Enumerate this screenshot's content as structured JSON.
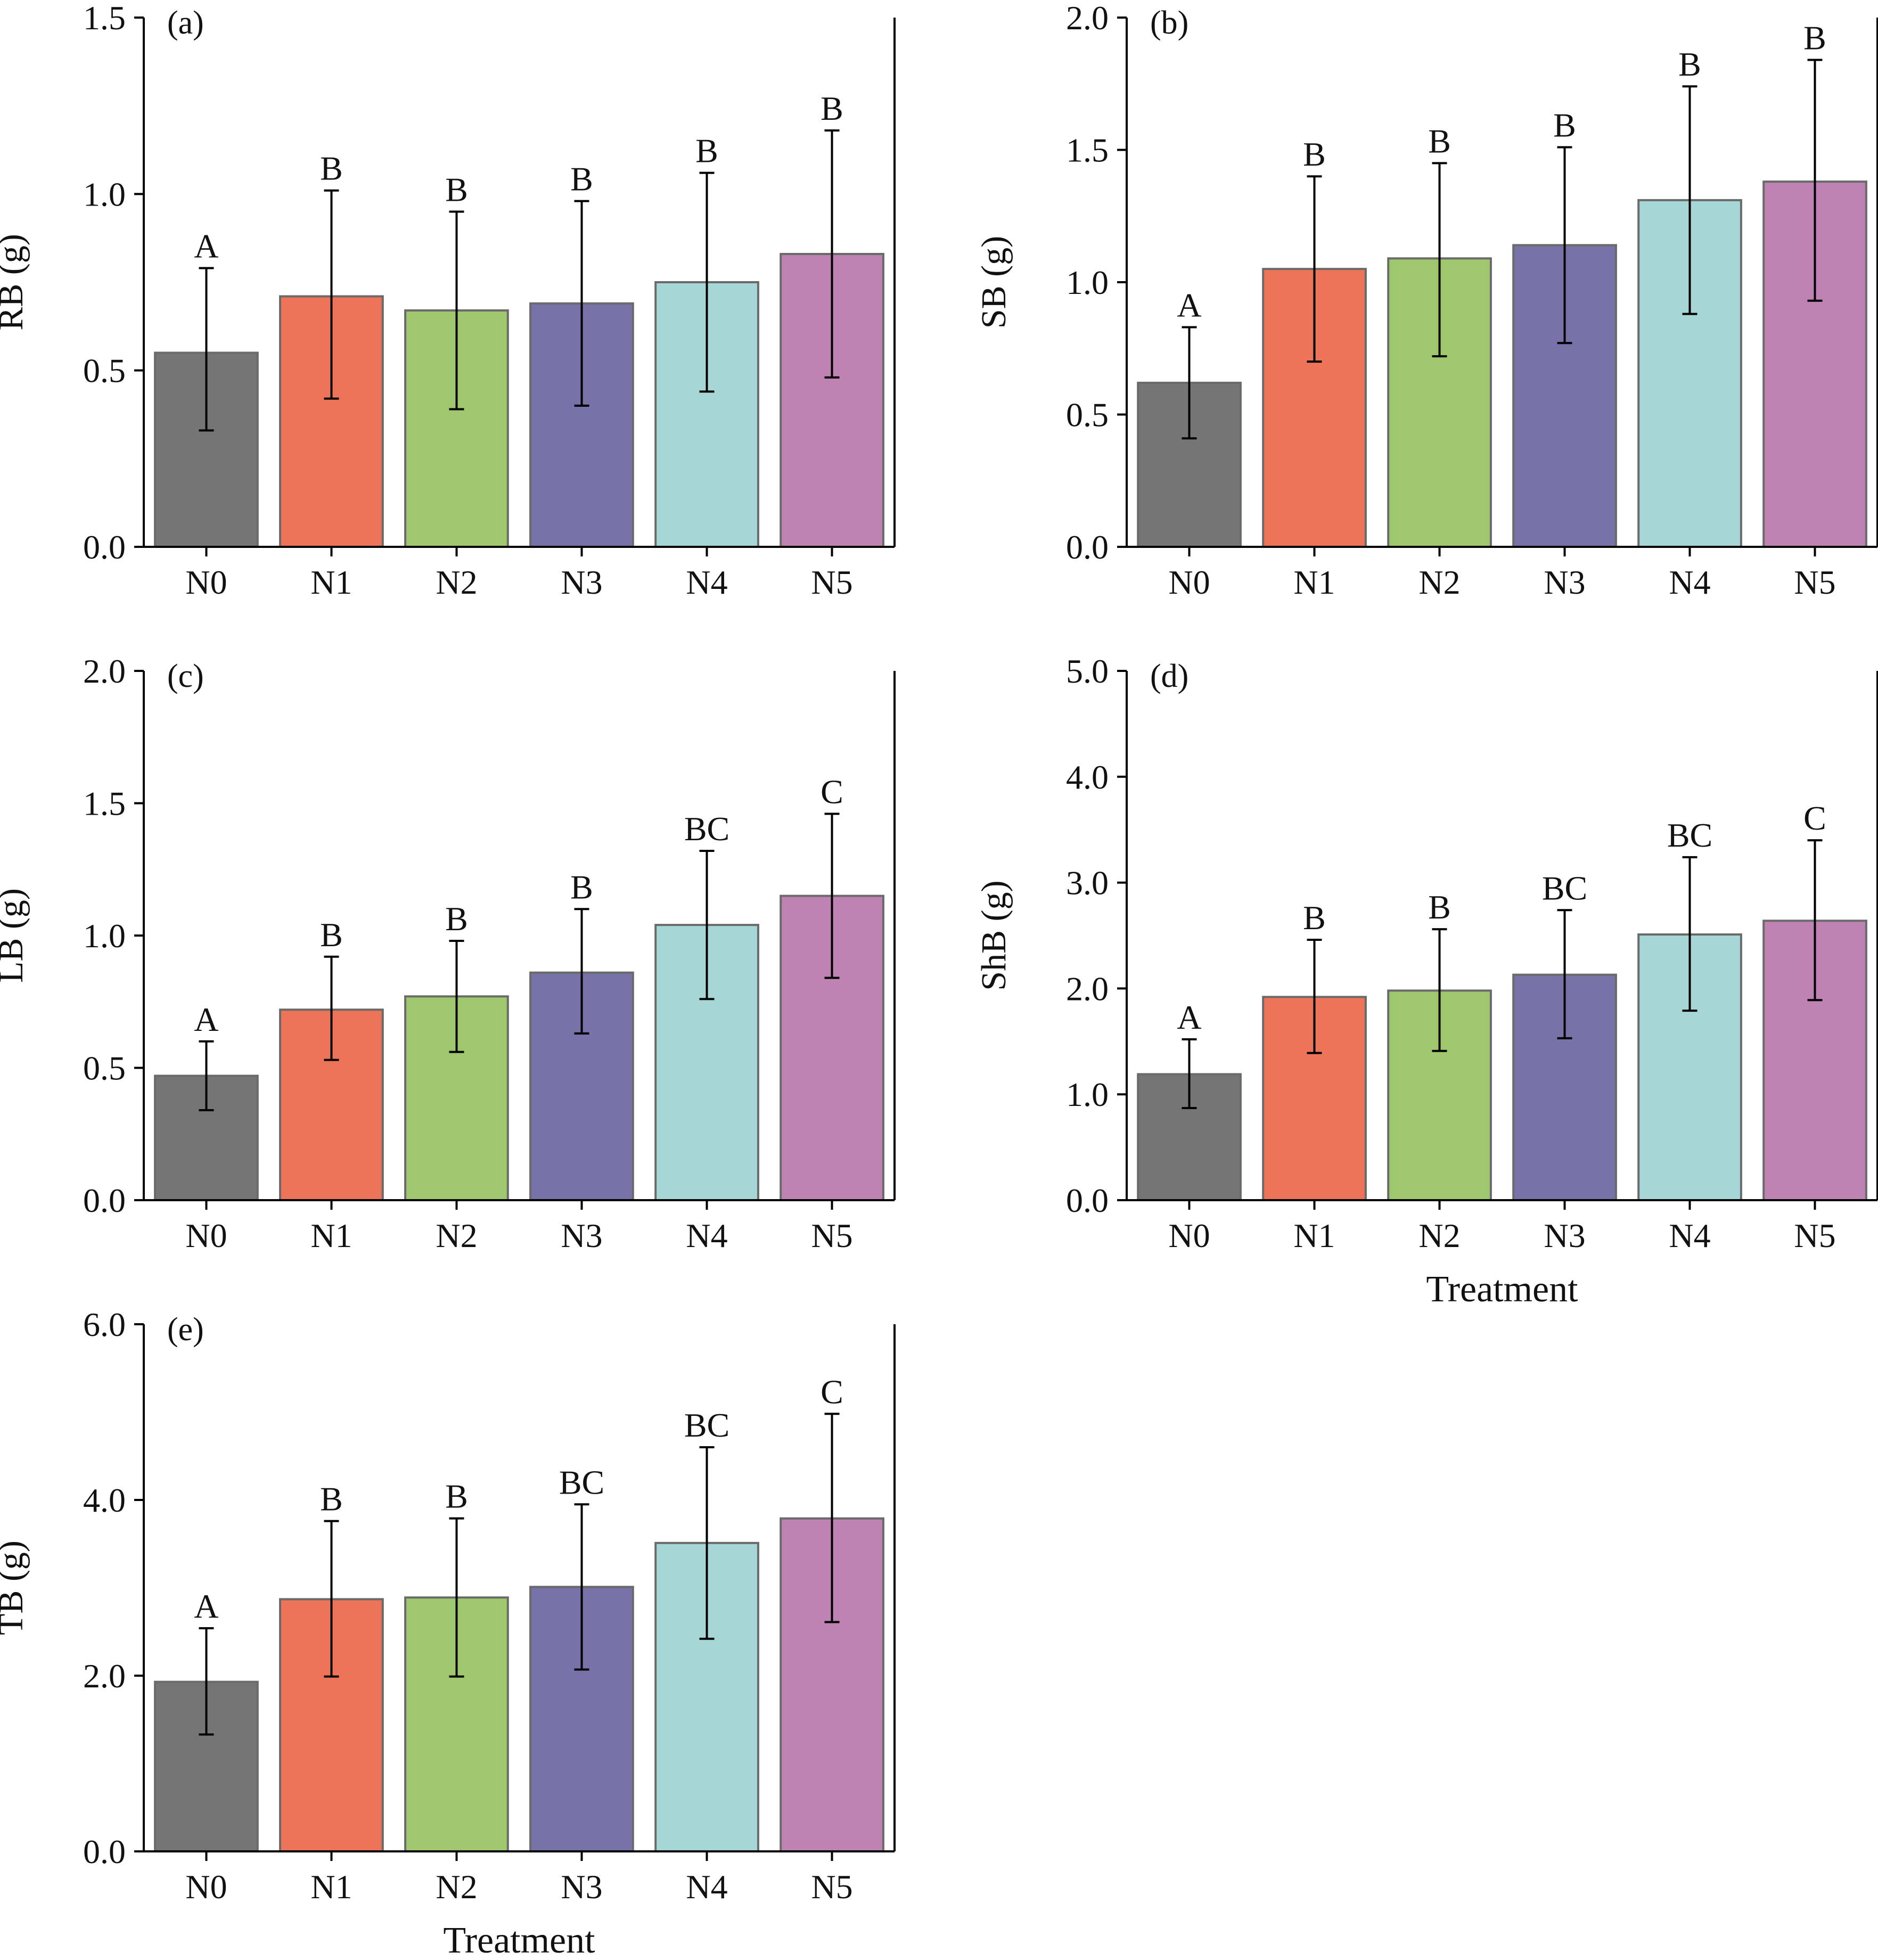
{
  "figure": {
    "x_axis_title": "Treatment"
  },
  "colors": {
    "N0": "#757575",
    "N1": "#ed7458",
    "N2": "#9fc86e",
    "N3": "#7772a8",
    "N4": "#a6d6d5",
    "N5": "#bf83b3",
    "bar_edge": "#6a6a6a",
    "axis": "#000000"
  },
  "chart_data": [
    {
      "type": "bar",
      "panel": "(a)",
      "ylabel": "RB (g)",
      "xlabel": "",
      "categories": [
        "N0",
        "N1",
        "N2",
        "N3",
        "N4",
        "N5"
      ],
      "values": [
        0.55,
        0.71,
        0.67,
        0.69,
        0.75,
        0.83
      ],
      "error_upper": [
        0.79,
        1.01,
        0.95,
        0.98,
        1.06,
        1.18
      ],
      "error_lower": [
        0.33,
        0.42,
        0.39,
        0.4,
        0.44,
        0.48
      ],
      "significance": [
        "A",
        "B",
        "B",
        "B",
        "B",
        "B"
      ],
      "ylim": [
        0,
        1.5
      ],
      "yticks": [
        "0.0",
        "0.5",
        "1.0",
        "1.5"
      ]
    },
    {
      "type": "bar",
      "panel": "(b)",
      "ylabel": "SB (g)",
      "xlabel": "",
      "categories": [
        "N0",
        "N1",
        "N2",
        "N3",
        "N4",
        "N5"
      ],
      "values": [
        0.62,
        1.05,
        1.09,
        1.14,
        1.31,
        1.38
      ],
      "error_upper": [
        0.83,
        1.4,
        1.45,
        1.51,
        1.74,
        1.84
      ],
      "error_lower": [
        0.41,
        0.7,
        0.72,
        0.77,
        0.88,
        0.93
      ],
      "significance": [
        "A",
        "B",
        "B",
        "B",
        "B",
        "B"
      ],
      "ylim": [
        0,
        2.0
      ],
      "yticks": [
        "0.0",
        "0.5",
        "1.0",
        "1.5",
        "2.0"
      ]
    },
    {
      "type": "bar",
      "panel": "(c)",
      "ylabel": "LB (g)",
      "xlabel": "",
      "categories": [
        "N0",
        "N1",
        "N2",
        "N3",
        "N4",
        "N5"
      ],
      "values": [
        0.47,
        0.72,
        0.77,
        0.86,
        1.04,
        1.15
      ],
      "error_upper": [
        0.6,
        0.92,
        0.98,
        1.1,
        1.32,
        1.46
      ],
      "error_lower": [
        0.34,
        0.53,
        0.56,
        0.63,
        0.76,
        0.84
      ],
      "significance": [
        "A",
        "B",
        "B",
        "B",
        "BC",
        "C"
      ],
      "ylim": [
        0,
        2.0
      ],
      "yticks": [
        "0.0",
        "0.5",
        "1.0",
        "1.5",
        "2.0"
      ]
    },
    {
      "type": "bar",
      "panel": "(d)",
      "ylabel": "ShB (g)",
      "xlabel": "Treatment",
      "categories": [
        "N0",
        "N1",
        "N2",
        "N3",
        "N4",
        "N5"
      ],
      "values": [
        1.19,
        1.92,
        1.98,
        2.13,
        2.51,
        2.64
      ],
      "error_upper": [
        1.52,
        2.46,
        2.56,
        2.74,
        3.24,
        3.4
      ],
      "error_lower": [
        0.87,
        1.39,
        1.41,
        1.53,
        1.79,
        1.89
      ],
      "significance": [
        "A",
        "B",
        "B",
        "BC",
        "BC",
        "C"
      ],
      "ylim": [
        0,
        5.0
      ],
      "yticks": [
        "0.0",
        "1.0",
        "2.0",
        "3.0",
        "4.0",
        "5.0"
      ]
    },
    {
      "type": "bar",
      "panel": "(e)",
      "ylabel": "TB (g)",
      "xlabel": "Treatment",
      "categories": [
        "N0",
        "N1",
        "N2",
        "N3",
        "N4",
        "N5"
      ],
      "values": [
        1.93,
        2.87,
        2.89,
        3.01,
        3.51,
        3.79
      ],
      "error_upper": [
        2.54,
        3.76,
        3.79,
        3.95,
        4.6,
        4.98
      ],
      "error_lower": [
        1.33,
        1.99,
        1.99,
        2.07,
        2.42,
        2.61
      ],
      "significance": [
        "A",
        "B",
        "B",
        "BC",
        "BC",
        "C"
      ],
      "ylim": [
        0,
        6.0
      ],
      "yticks": [
        "0.0",
        "2.0",
        "4.0",
        "6.0"
      ]
    }
  ]
}
